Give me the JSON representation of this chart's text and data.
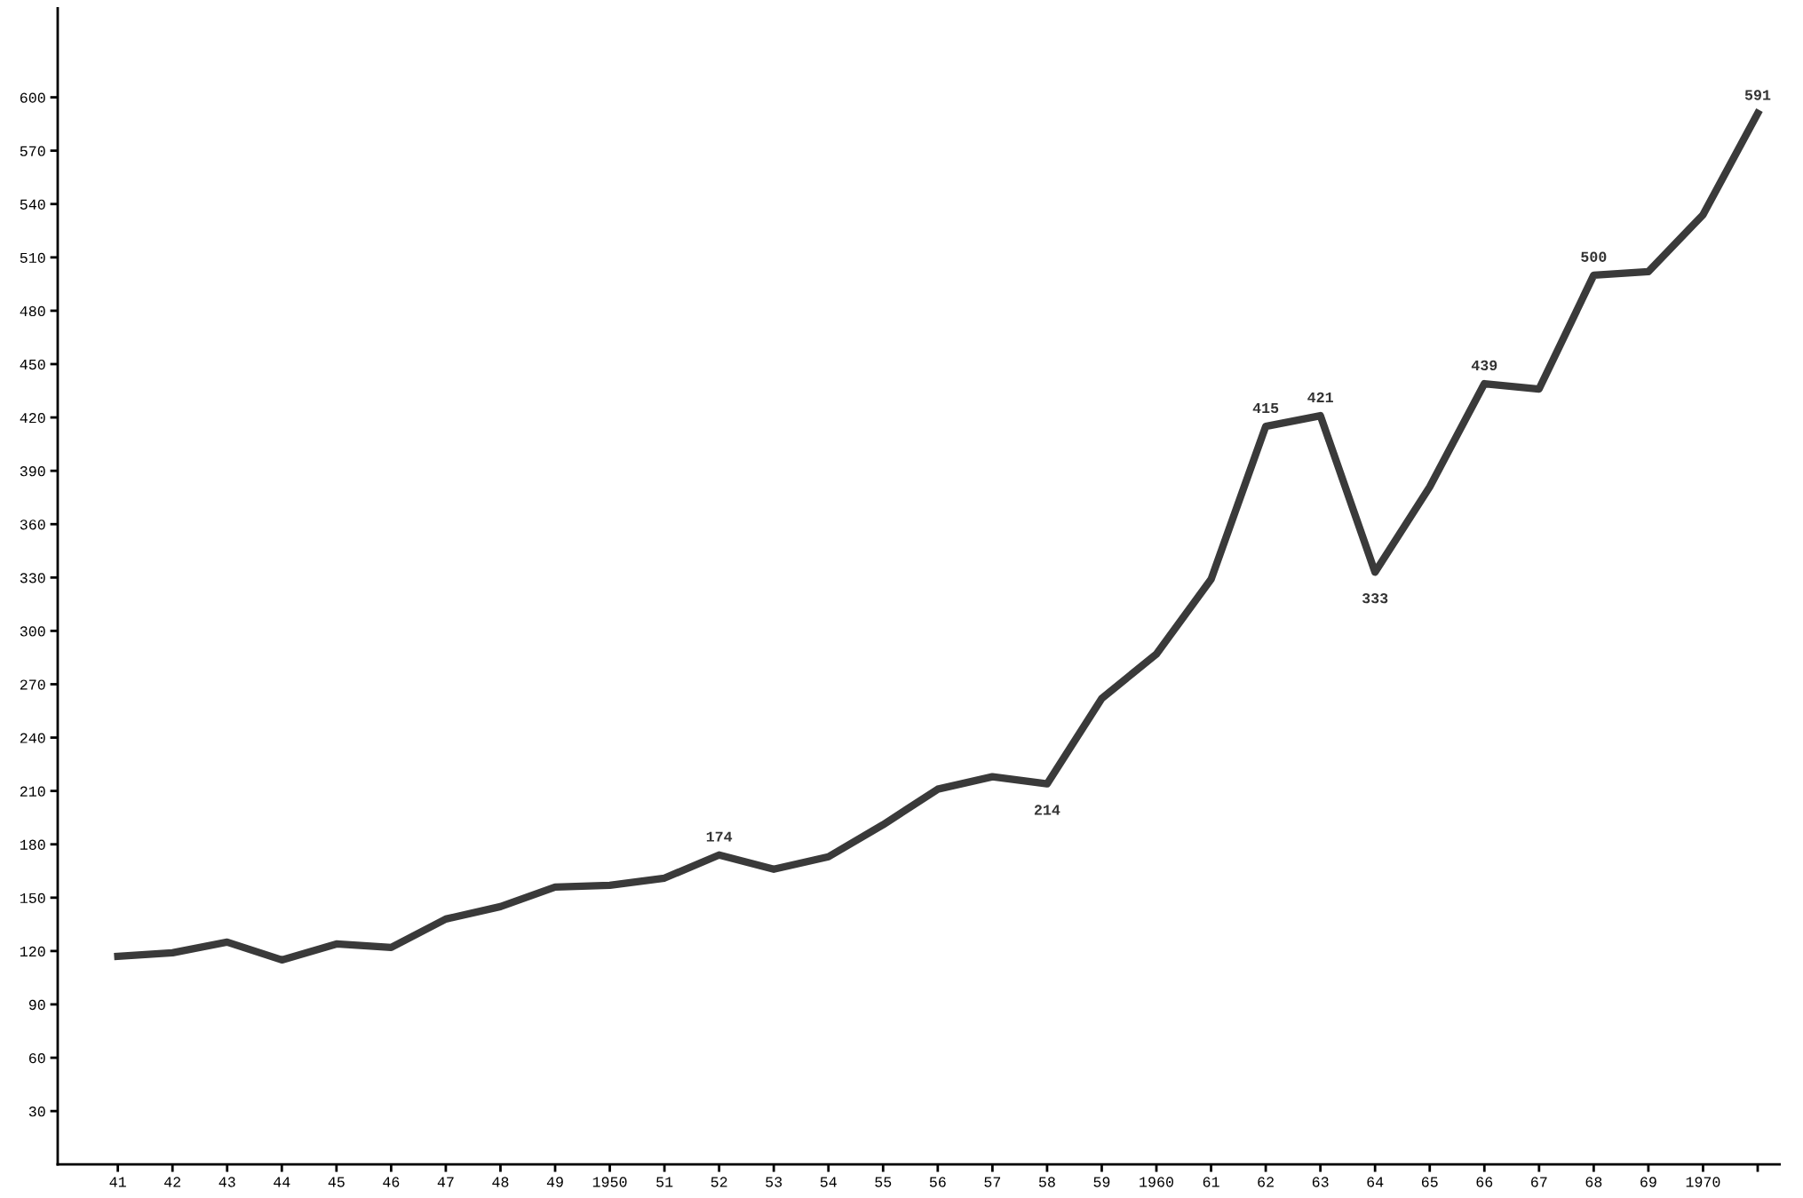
{
  "chart_data": {
    "type": "line",
    "categories": [
      "41",
      "42",
      "43",
      "44",
      "45",
      "46",
      "47",
      "48",
      "49",
      "1950",
      "51",
      "52",
      "53",
      "54",
      "55",
      "56",
      "57",
      "58",
      "59",
      "1960",
      "61",
      "62",
      "63",
      "64",
      "65",
      "66",
      "67",
      "68",
      "69",
      "1970",
      null
    ],
    "series": [
      {
        "color": "#3a3a3a",
        "values": [
          117,
          119,
          125,
          115,
          124,
          122,
          138,
          145,
          156,
          157,
          161,
          174,
          166,
          173,
          191,
          211,
          218,
          214,
          262,
          287,
          329,
          415,
          421,
          333,
          381,
          439,
          436,
          500,
          502,
          534,
          591
        ],
        "value_labels": [
          null,
          null,
          null,
          null,
          null,
          null,
          null,
          null,
          null,
          null,
          null,
          "174",
          null,
          null,
          null,
          null,
          null,
          "214",
          null,
          null,
          null,
          "415",
          "421",
          "333",
          null,
          "439",
          null,
          "500",
          null,
          null,
          "591"
        ]
      }
    ],
    "ylim": [
      0,
      650
    ],
    "yticks": [
      30,
      60,
      90,
      120,
      150,
      180,
      210,
      240,
      270,
      300,
      330,
      360,
      390,
      420,
      450,
      480,
      510,
      540,
      570,
      600
    ],
    "grid": false,
    "marker": "none",
    "line_style": "solid"
  }
}
